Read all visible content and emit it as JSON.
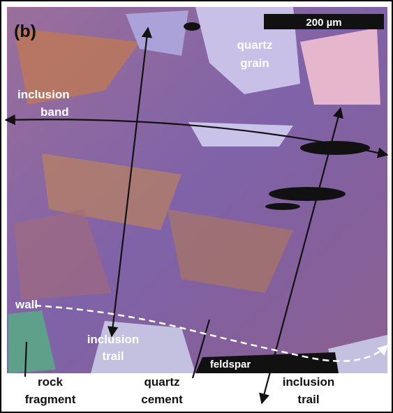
{
  "panel_label": "(b)",
  "scale_bar": "200 µm",
  "labels": {
    "quartz_grain": [
      "quartz",
      "grain"
    ],
    "inclusion_band": [
      "inclusion",
      "band"
    ],
    "wall": "wall",
    "inclusion_trail_mid": [
      "inclusion",
      "trail"
    ],
    "feldspar": "feldspar",
    "rock_fragment": [
      "rock",
      "fragment"
    ],
    "quartz_cement": [
      "quartz",
      "cement"
    ],
    "inclusion_trail_right": [
      "inclusion",
      "trail"
    ]
  }
}
